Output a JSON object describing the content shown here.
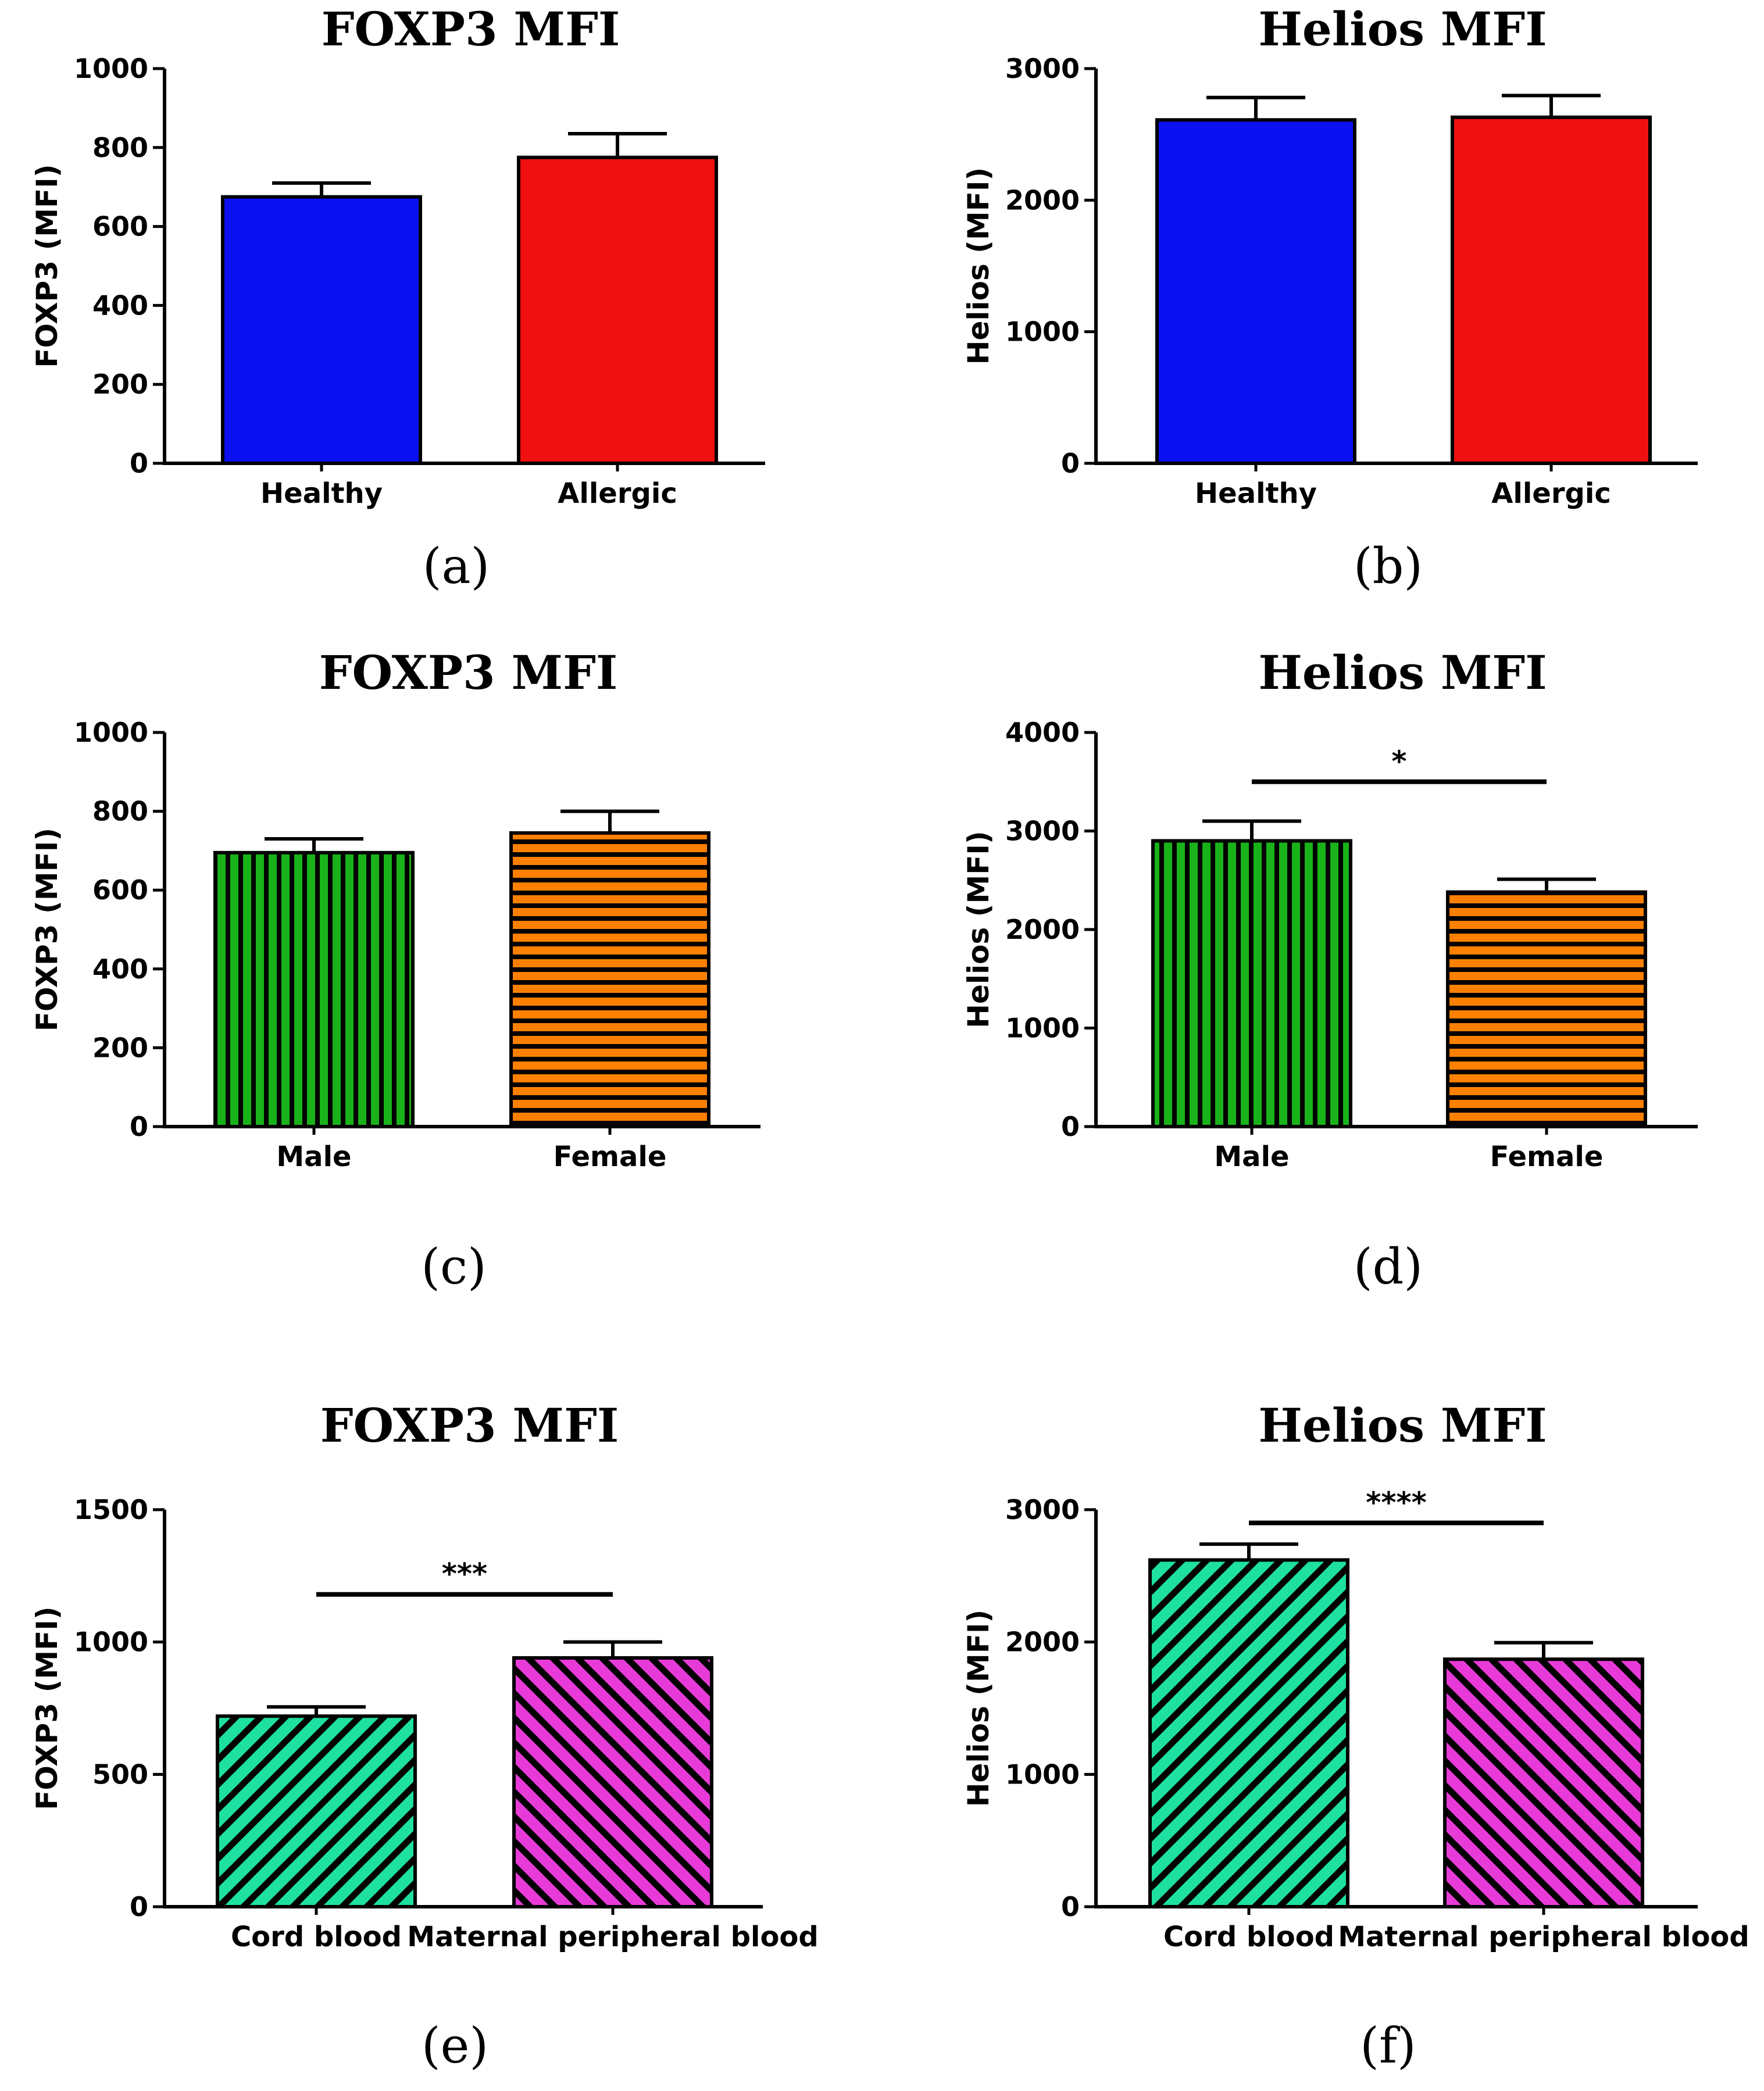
{
  "chart_data": [
    {
      "type": "bar",
      "panel_label": "(a)",
      "title": "FOXP3 MFI",
      "ylabel": "FOXP3 (MFI)",
      "xlabel": "",
      "categories": [
        "Healthy",
        "Allergic"
      ],
      "values": [
        675,
        775
      ],
      "errors": [
        35,
        60
      ],
      "ylim": [
        0,
        1000
      ],
      "yticks": [
        0,
        200,
        400,
        600,
        800,
        1000
      ],
      "colors": [
        "#0a10f0",
        "#f01010"
      ],
      "patterns": [
        "solid",
        "solid"
      ],
      "significance": null
    },
    {
      "type": "bar",
      "panel_label": "(b)",
      "title": "Helios MFI",
      "ylabel": "Helios (MFI)",
      "xlabel": "",
      "categories": [
        "Healthy",
        "Allergic"
      ],
      "values": [
        2610,
        2630
      ],
      "errors": [
        170,
        165
      ],
      "ylim": [
        0,
        3000
      ],
      "yticks": [
        0,
        1000,
        2000,
        3000
      ],
      "colors": [
        "#0a10f0",
        "#f01010"
      ],
      "patterns": [
        "solid",
        "solid"
      ],
      "significance": null
    },
    {
      "type": "bar",
      "panel_label": "(c)",
      "title": "FOXP3 MFI",
      "ylabel": "FOXP3 (MFI)",
      "xlabel": "",
      "categories": [
        "Male",
        "Female"
      ],
      "values": [
        695,
        745
      ],
      "errors": [
        35,
        55
      ],
      "ylim": [
        0,
        1000
      ],
      "yticks": [
        0,
        200,
        400,
        600,
        800,
        1000
      ],
      "colors": [
        "#19b219",
        "#ff8000"
      ],
      "patterns": [
        "vertical",
        "horizontal"
      ],
      "significance": null
    },
    {
      "type": "bar",
      "panel_label": "(d)",
      "title": "Helios MFI",
      "ylabel": "Helios (MFI)",
      "xlabel": "",
      "categories": [
        "Male",
        "Female"
      ],
      "values": [
        2900,
        2380
      ],
      "errors": [
        200,
        130
      ],
      "ylim": [
        0,
        4000
      ],
      "yticks": [
        0,
        1000,
        2000,
        3000,
        4000
      ],
      "colors": [
        "#19b219",
        "#ff8000"
      ],
      "patterns": [
        "vertical",
        "horizontal"
      ],
      "significance": {
        "label": "*",
        "value": 3500
      }
    },
    {
      "type": "bar",
      "panel_label": "(e)",
      "title": "FOXP3 MFI",
      "ylabel": "FOXP3 (MFI)",
      "xlabel": "",
      "categories": [
        "Cord blood",
        "Maternal peripheral blood"
      ],
      "values": [
        720,
        940
      ],
      "errors": [
        35,
        60
      ],
      "ylim": [
        0,
        1500
      ],
      "yticks": [
        0,
        500,
        1000,
        1500
      ],
      "colors": [
        "#1ee0a0",
        "#e83ad8"
      ],
      "patterns": [
        "diag-up",
        "diag-down"
      ],
      "significance": {
        "label": "***",
        "value": 1180
      }
    },
    {
      "type": "bar",
      "panel_label": "(f)",
      "title": "Helios MFI",
      "ylabel": "Helios (MFI)",
      "xlabel": "",
      "categories": [
        "Cord blood",
        "Maternal peripheral blood"
      ],
      "values": [
        2620,
        1870
      ],
      "errors": [
        120,
        125
      ],
      "ylim": [
        0,
        3000
      ],
      "yticks": [
        0,
        1000,
        2000,
        3000
      ],
      "colors": [
        "#1ee0a0",
        "#e83ad8"
      ],
      "patterns": [
        "diag-up",
        "diag-down"
      ],
      "significance": {
        "label": "****",
        "value": 2900
      }
    }
  ]
}
